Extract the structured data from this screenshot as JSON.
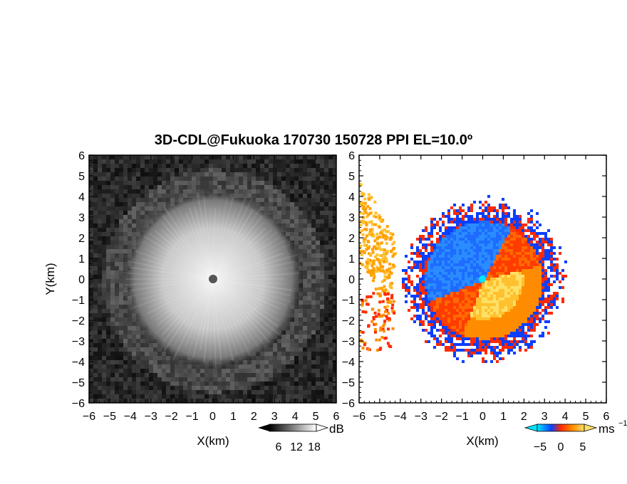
{
  "title": "3D-CDL@Fukuoka 170730 150728 PPI EL=10.0º",
  "colors": {
    "reflectivity_scale": [
      "#000000",
      "#ffffff"
    ],
    "velocity_scale": [
      "#00e5ff",
      "#0a3fff",
      "#ff2a00",
      "#ff8c00",
      "#ffe066"
    ]
  },
  "chart_data": [
    {
      "type": "heatmap",
      "panel": "reflectivity",
      "xlabel": "X(km)",
      "ylabel": "Y(km)",
      "xlim": [
        -6,
        6
      ],
      "ylim": [
        -6,
        6
      ],
      "x_ticks": [
        "−6",
        "−5",
        "−4",
        "−3",
        "−2",
        "−1",
        "0",
        "1",
        "2",
        "3",
        "4",
        "5",
        "6"
      ],
      "y_ticks": [
        "6",
        "5",
        "4",
        "3",
        "2",
        "1",
        "0",
        "−1",
        "−2",
        "−3",
        "−4",
        "−5",
        "−6"
      ],
      "colorbar": {
        "unit": "dB",
        "ticks": [
          "6",
          "12",
          "18"
        ],
        "colors": [
          "#000000",
          "#ffffff"
        ]
      },
      "bright_zone_radius_km": 4,
      "radar_center": [
        0,
        0
      ]
    },
    {
      "type": "heatmap",
      "panel": "doppler-velocity",
      "xlabel": "X(km)",
      "xlim": [
        -6,
        6
      ],
      "ylim": [
        -6,
        6
      ],
      "x_ticks": [
        "−6",
        "−5",
        "−4",
        "−3",
        "−2",
        "−1",
        "0",
        "1",
        "2",
        "3",
        "4",
        "5",
        "6"
      ],
      "y_ticks": [
        "6",
        "5",
        "4",
        "3",
        "2",
        "1",
        "0",
        "−1",
        "−2",
        "−3",
        "−4",
        "−5",
        "−6"
      ],
      "colorbar": {
        "unit": "ms",
        "unit_exponent": "−1",
        "ticks": [
          "−5",
          "0",
          "5"
        ],
        "range": [
          -6,
          6
        ],
        "colors": [
          "#00e5ff",
          "#0a3fff",
          "#ff2a00",
          "#ff8c00",
          "#ffe066"
        ]
      },
      "coverage_radius_km": 3.8,
      "radar_center": [
        0,
        0
      ]
    }
  ]
}
